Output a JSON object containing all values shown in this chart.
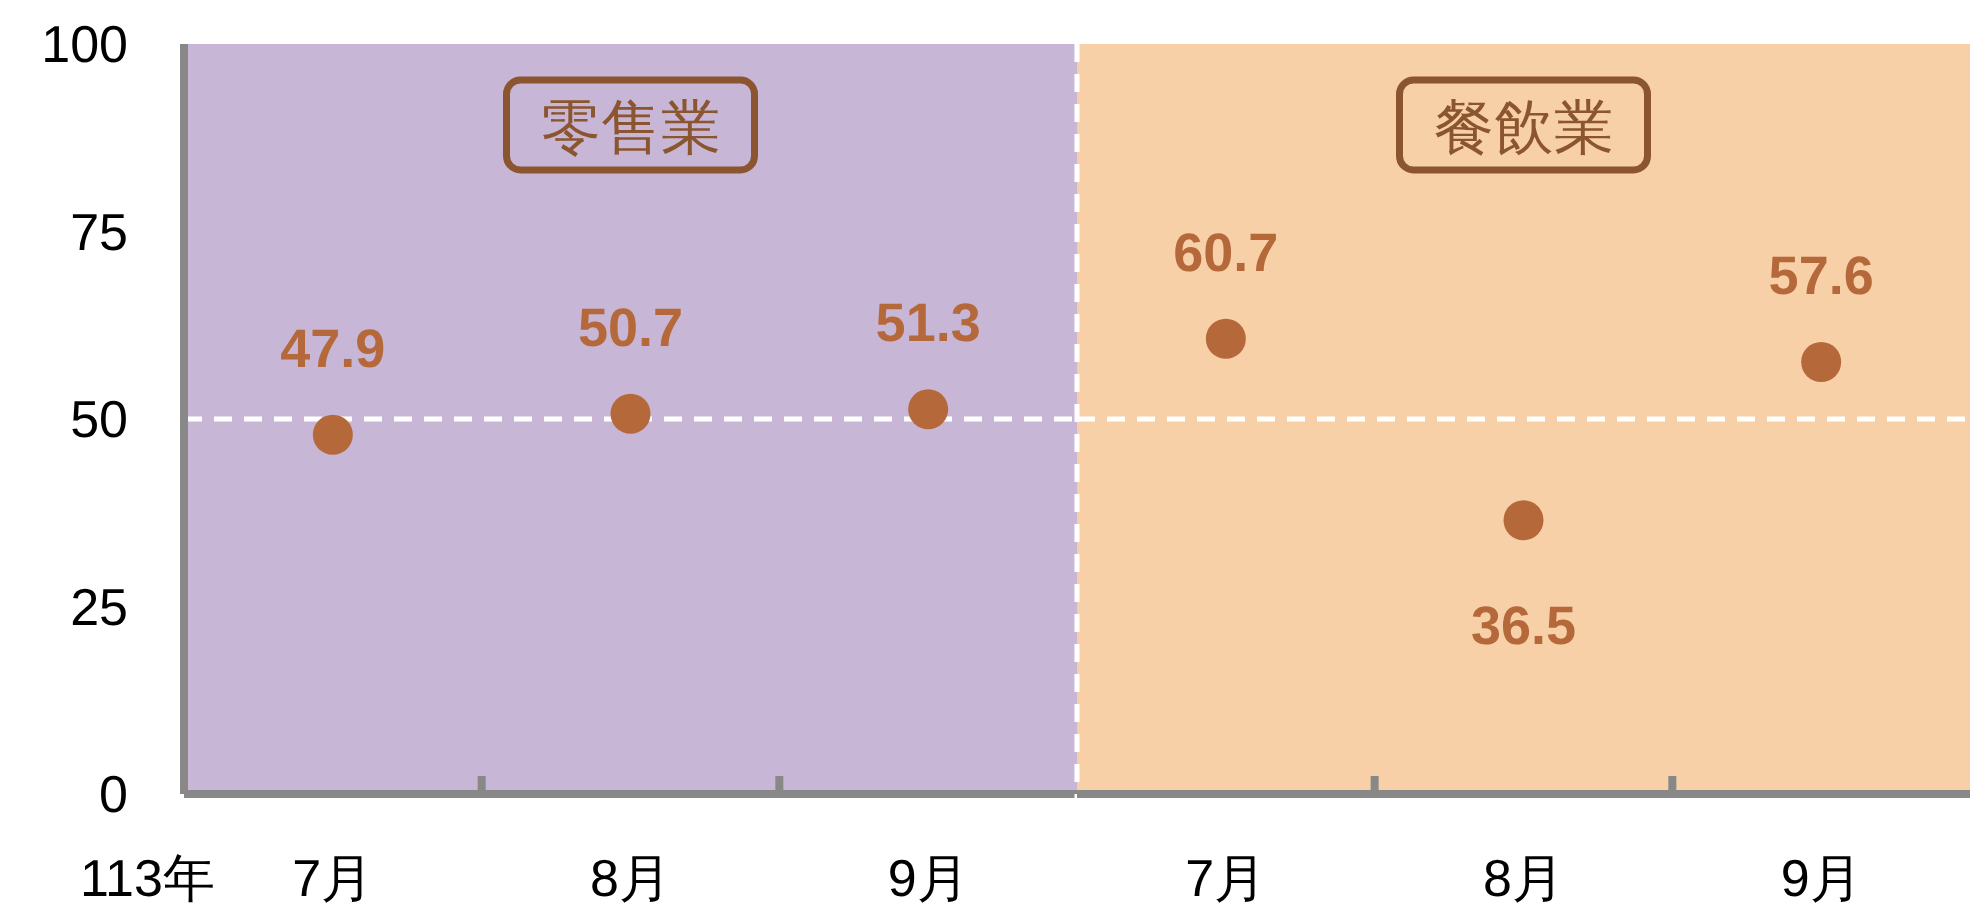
{
  "chart_data": [
    {
      "type": "scatter",
      "xlabel": "113年",
      "categories": [
        "7月",
        "8月",
        "9月"
      ],
      "values": [
        47.9,
        50.7,
        51.3
      ],
      "color": "#b5693a",
      "marker": "circle",
      "data_labels": true,
      "ylim": [
        0,
        100
      ],
      "yticks": [
        0,
        25,
        50,
        75,
        100
      ],
      "bands": [
        {
          "axis": "x",
          "from": "7月",
          "to": "9月",
          "label": "零售業",
          "color": "#c8b6d6"
        }
      ],
      "ref_lines": [
        {
          "axis": "y",
          "value": 50,
          "color": "#ffffff",
          "line_style": "dashed"
        }
      ]
    },
    {
      "type": "scatter",
      "categories": [
        "7月",
        "8月",
        "9月"
      ],
      "values": [
        60.7,
        36.5,
        57.6
      ],
      "color": "#b5693a",
      "marker": "circle",
      "data_labels": true,
      "ylim": [
        0,
        100
      ],
      "yticks": [
        0,
        25,
        50,
        75,
        100
      ],
      "tick_labels": "x",
      "bands": [
        {
          "axis": "x",
          "from": "7月",
          "to": "9月",
          "label": "餐飲業",
          "color": "#f8d0a8"
        }
      ],
      "ref_lines": [
        {
          "axis": "y",
          "value": 50,
          "color": "#ffffff",
          "line_style": "dashed"
        }
      ]
    }
  ]
}
